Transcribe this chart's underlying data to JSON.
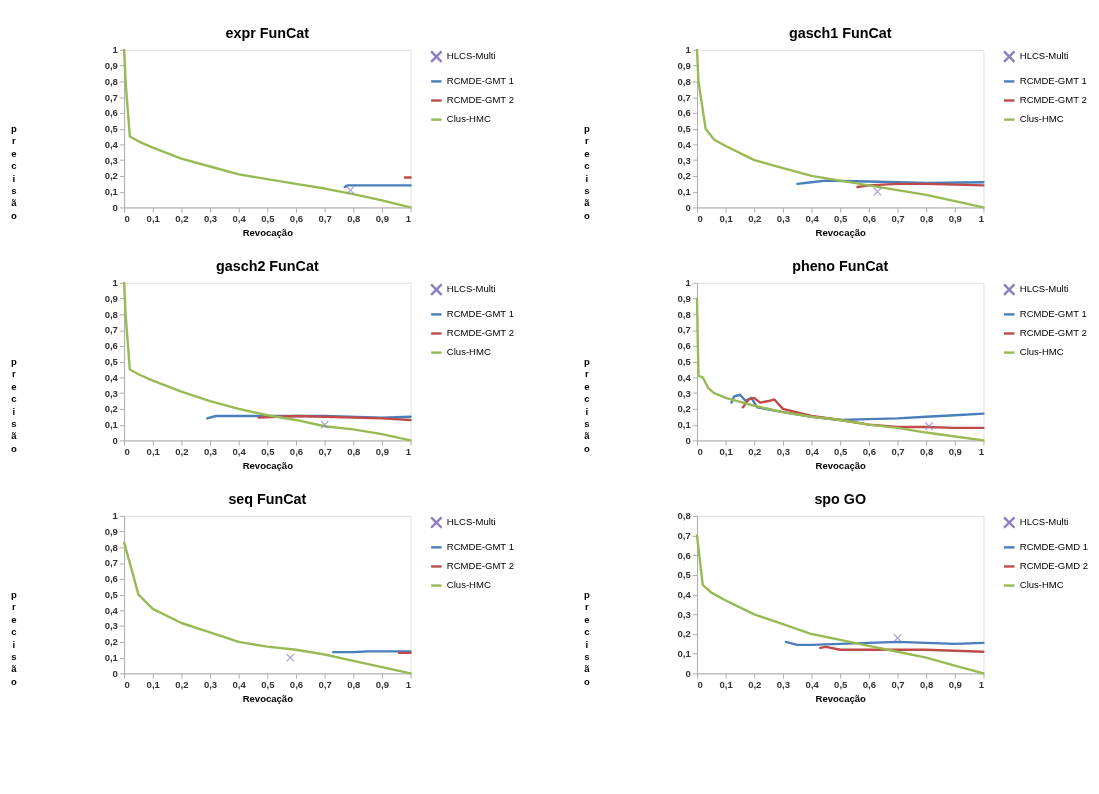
{
  "chart_data": [
    {
      "type": "line",
      "title": "expr FunCat",
      "xlabel": "Revocação",
      "ylabel": "precisão",
      "legend": "right",
      "grid": false,
      "xlim": [
        0,
        1
      ],
      "ylim": [
        0,
        1
      ],
      "xticks": [
        0,
        {
          "value": 0.1,
          "label": "0,1"
        },
        {
          "value": 0.2,
          "label": "0,2"
        },
        {
          "value": 0.3,
          "label": "0,3"
        },
        {
          "value": 0.4,
          "label": "0,4"
        },
        {
          "value": 0.5,
          "label": "0,5"
        },
        {
          "value": 0.6,
          "label": "0,6"
        },
        {
          "value": 0.7,
          "label": "0,7"
        },
        {
          "value": 0.8,
          "label": "0,8"
        },
        {
          "value": 0.9,
          "label": "0,9"
        },
        1
      ],
      "yticks": [
        0,
        {
          "value": 0.1,
          "label": "0,1"
        },
        {
          "value": 0.2,
          "label": "0,2"
        },
        {
          "value": 0.3,
          "label": "0,3"
        },
        {
          "value": 0.4,
          "label": "0,4"
        },
        {
          "value": 0.5,
          "label": "0,5"
        },
        {
          "value": 0.6,
          "label": "0,6"
        },
        {
          "value": 0.7,
          "label": "0,7"
        },
        {
          "value": 0.8,
          "label": "0,8"
        },
        {
          "value": 0.9,
          "label": "0,9"
        },
        1
      ],
      "series": [
        {
          "name": "HLCS-Multi",
          "type": "scatter",
          "marker": "cross",
          "color": "#8e7cc3",
          "x": [
            0.79
          ],
          "values": [
            0.11
          ]
        },
        {
          "name": "RCMDE-GMT 1",
          "type": "line",
          "color": "#4a7ebb",
          "x": [
            0.77,
            0.78,
            0.8,
            0.9,
            1
          ],
          "values": [
            0.13,
            0.14,
            0.14,
            0.14,
            0.14
          ]
        },
        {
          "name": "RCMDE-GMT 2",
          "type": "line",
          "color": "#be4b48",
          "x": [
            0.98,
            1
          ],
          "values": [
            0.19,
            0.19
          ]
        },
        {
          "name": "Clus-HMC",
          "type": "line",
          "color": "#98b954",
          "x": [
            0,
            0.005,
            0.02,
            0.05,
            0.1,
            0.2,
            0.3,
            0.4,
            0.5,
            0.6,
            0.7,
            0.8,
            0.9,
            1
          ],
          "values": [
            1,
            0.8,
            0.45,
            0.42,
            0.38,
            0.31,
            0.26,
            0.21,
            0.18,
            0.15,
            0.12,
            0.085,
            0.045,
            0
          ]
        }
      ]
    },
    {
      "type": "line",
      "title": "gasch1 FunCat",
      "xlabel": "Revocação",
      "ylabel": "precisão",
      "legend": "right",
      "grid": false,
      "xlim": [
        0,
        1
      ],
      "ylim": [
        0,
        1
      ],
      "xticks": [
        0,
        {
          "value": 0.1,
          "label": "0,1"
        },
        {
          "value": 0.2,
          "label": "0,2"
        },
        {
          "value": 0.3,
          "label": "0,3"
        },
        {
          "value": 0.4,
          "label": "0,4"
        },
        {
          "value": 0.5,
          "label": "0,5"
        },
        {
          "value": 0.6,
          "label": "0,6"
        },
        {
          "value": 0.7,
          "label": "0,7"
        },
        {
          "value": 0.8,
          "label": "0,8"
        },
        {
          "value": 0.9,
          "label": "0,9"
        },
        1
      ],
      "yticks": [
        0,
        {
          "value": 0.1,
          "label": "0,1"
        },
        {
          "value": 0.2,
          "label": "0,2"
        },
        {
          "value": 0.3,
          "label": "0,3"
        },
        {
          "value": 0.4,
          "label": "0,4"
        },
        {
          "value": 0.5,
          "label": "0,5"
        },
        {
          "value": 0.6,
          "label": "0,6"
        },
        {
          "value": 0.7,
          "label": "0,7"
        },
        {
          "value": 0.8,
          "label": "0,8"
        },
        {
          "value": 0.9,
          "label": "0,9"
        },
        1
      ],
      "series": [
        {
          "name": "HLCS-Multi",
          "type": "scatter",
          "marker": "cross",
          "color": "#8e7cc3",
          "x": [
            0.63
          ],
          "values": [
            0.1
          ]
        },
        {
          "name": "RCMDE-GMT 1",
          "type": "line",
          "color": "#4a7ebb",
          "x": [
            0.35,
            0.4,
            0.45,
            0.6,
            0.8,
            1
          ],
          "values": [
            0.15,
            0.16,
            0.17,
            0.165,
            0.155,
            0.16
          ]
        },
        {
          "name": "RCMDE-GMT 2",
          "type": "line",
          "color": "#be4b48",
          "x": [
            0.56,
            0.6,
            0.7,
            0.8,
            1
          ],
          "values": [
            0.13,
            0.14,
            0.15,
            0.15,
            0.14
          ]
        },
        {
          "name": "Clus-HMC",
          "type": "line",
          "color": "#98b954",
          "x": [
            0,
            0.005,
            0.03,
            0.06,
            0.1,
            0.2,
            0.3,
            0.4,
            0.5,
            0.6,
            0.7,
            0.8,
            0.9,
            1
          ],
          "values": [
            1,
            0.8,
            0.5,
            0.43,
            0.39,
            0.3,
            0.25,
            0.2,
            0.17,
            0.14,
            0.11,
            0.08,
            0.04,
            0
          ]
        }
      ]
    },
    {
      "type": "line",
      "title": "gasch2 FunCat",
      "xlabel": "Revocação",
      "ylabel": "precisão",
      "legend": "right",
      "grid": false,
      "xlim": [
        0,
        1
      ],
      "ylim": [
        0,
        1
      ],
      "xticks": [
        0,
        {
          "value": 0.1,
          "label": "0,1"
        },
        {
          "value": 0.2,
          "label": "0,2"
        },
        {
          "value": 0.3,
          "label": "0,3"
        },
        {
          "value": 0.4,
          "label": "0,4"
        },
        {
          "value": 0.5,
          "label": "0,5"
        },
        {
          "value": 0.6,
          "label": "0,6"
        },
        {
          "value": 0.7,
          "label": "0,7"
        },
        {
          "value": 0.8,
          "label": "0,8"
        },
        {
          "value": 0.9,
          "label": "0,9"
        },
        1
      ],
      "yticks": [
        0,
        {
          "value": 0.1,
          "label": "0,1"
        },
        {
          "value": 0.2,
          "label": "0,2"
        },
        {
          "value": 0.3,
          "label": "0,3"
        },
        {
          "value": 0.4,
          "label": "0,4"
        },
        {
          "value": 0.5,
          "label": "0,5"
        },
        {
          "value": 0.6,
          "label": "0,6"
        },
        {
          "value": 0.7,
          "label": "0,7"
        },
        {
          "value": 0.8,
          "label": "0,8"
        },
        {
          "value": 0.9,
          "label": "0,9"
        },
        1
      ],
      "series": [
        {
          "name": "HLCS-Multi",
          "type": "scatter",
          "marker": "cross",
          "color": "#8e7cc3",
          "x": [
            0.7
          ],
          "values": [
            0.1
          ]
        },
        {
          "name": "RCMDE-GMT 1",
          "type": "line",
          "color": "#4a7ebb",
          "x": [
            0.29,
            0.32,
            0.5,
            0.7,
            0.9,
            1
          ],
          "values": [
            0.14,
            0.155,
            0.155,
            0.155,
            0.145,
            0.15
          ]
        },
        {
          "name": "RCMDE-GMT 2",
          "type": "line",
          "color": "#be4b48",
          "x": [
            0.47,
            0.6,
            0.7,
            0.9,
            1
          ],
          "values": [
            0.145,
            0.155,
            0.15,
            0.14,
            0.13
          ]
        },
        {
          "name": "Clus-HMC",
          "type": "line",
          "color": "#98b954",
          "x": [
            0,
            0.005,
            0.02,
            0.05,
            0.1,
            0.2,
            0.3,
            0.4,
            0.5,
            0.6,
            0.7,
            0.8,
            0.9,
            1
          ],
          "values": [
            1,
            0.8,
            0.45,
            0.42,
            0.38,
            0.31,
            0.25,
            0.2,
            0.16,
            0.13,
            0.09,
            0.07,
            0.04,
            0
          ]
        }
      ]
    },
    {
      "type": "line",
      "title": "pheno FunCat",
      "xlabel": "Revocação",
      "ylabel": "precisão",
      "legend": "right",
      "grid": false,
      "xlim": [
        0,
        1
      ],
      "ylim": [
        0,
        1
      ],
      "xticks": [
        0,
        {
          "value": 0.1,
          "label": "0,1"
        },
        {
          "value": 0.2,
          "label": "0,2"
        },
        {
          "value": 0.3,
          "label": "0,3"
        },
        {
          "value": 0.4,
          "label": "0,4"
        },
        {
          "value": 0.5,
          "label": "0,5"
        },
        {
          "value": 0.6,
          "label": "0,6"
        },
        {
          "value": 0.7,
          "label": "0,7"
        },
        {
          "value": 0.8,
          "label": "0,8"
        },
        {
          "value": 0.9,
          "label": "0,9"
        },
        1
      ],
      "yticks": [
        0,
        {
          "value": 0.1,
          "label": "0,1"
        },
        {
          "value": 0.2,
          "label": "0,2"
        },
        {
          "value": 0.3,
          "label": "0,3"
        },
        {
          "value": 0.4,
          "label": "0,4"
        },
        {
          "value": 0.5,
          "label": "0,5"
        },
        {
          "value": 0.6,
          "label": "0,6"
        },
        {
          "value": 0.7,
          "label": "0,7"
        },
        {
          "value": 0.8,
          "label": "0,8"
        },
        {
          "value": 0.9,
          "label": "0,9"
        },
        1
      ],
      "series": [
        {
          "name": "HLCS-Multi",
          "type": "scatter",
          "marker": "cross",
          "color": "#8e7cc3",
          "x": [
            0.81
          ],
          "values": [
            0.09
          ]
        },
        {
          "name": "RCMDE-GMT 1",
          "type": "line",
          "color": "#4a7ebb",
          "x": [
            0.12,
            0.13,
            0.15,
            0.17,
            0.19,
            0.21,
            0.3,
            0.4,
            0.5,
            0.6,
            0.7,
            0.8,
            0.9,
            1
          ],
          "values": [
            0.24,
            0.28,
            0.29,
            0.25,
            0.27,
            0.21,
            0.18,
            0.15,
            0.13,
            0.135,
            0.14,
            0.15,
            0.16,
            0.17
          ]
        },
        {
          "name": "RCMDE-GMT 2",
          "type": "line",
          "color": "#be4b48",
          "x": [
            0.16,
            0.18,
            0.2,
            0.22,
            0.25,
            0.27,
            0.3,
            0.4,
            0.5,
            0.6,
            0.7,
            0.8,
            0.9,
            1
          ],
          "values": [
            0.21,
            0.26,
            0.27,
            0.24,
            0.25,
            0.26,
            0.2,
            0.155,
            0.13,
            0.1,
            0.085,
            0.085,
            0.08,
            0.08
          ]
        },
        {
          "name": "Clus-HMC",
          "type": "line",
          "color": "#98b954",
          "x": [
            0,
            0.005,
            0.02,
            0.04,
            0.06,
            0.1,
            0.2,
            0.3,
            0.4,
            0.5,
            0.6,
            0.7,
            0.8,
            0.9,
            1
          ],
          "values": [
            0.9,
            0.41,
            0.4,
            0.33,
            0.3,
            0.27,
            0.22,
            0.18,
            0.15,
            0.13,
            0.1,
            0.08,
            0.05,
            0.025,
            0
          ]
        }
      ]
    },
    {
      "type": "line",
      "title": "seq FunCat",
      "xlabel": "Revocação",
      "ylabel": "precisão",
      "legend": "right",
      "grid": false,
      "xlim": [
        0,
        1
      ],
      "ylim": [
        0,
        1
      ],
      "xticks": [
        0,
        {
          "value": 0.1,
          "label": "0,1"
        },
        {
          "value": 0.2,
          "label": "0,2"
        },
        {
          "value": 0.3,
          "label": "0,3"
        },
        {
          "value": 0.4,
          "label": "0,4"
        },
        {
          "value": 0.5,
          "label": "0,5"
        },
        {
          "value": 0.6,
          "label": "0,6"
        },
        {
          "value": 0.7,
          "label": "0,7"
        },
        {
          "value": 0.8,
          "label": "0,8"
        },
        {
          "value": 0.9,
          "label": "0,9"
        },
        1
      ],
      "yticks": [
        0,
        {
          "value": 0.1,
          "label": "0,1"
        },
        {
          "value": 0.2,
          "label": "0,2"
        },
        {
          "value": 0.3,
          "label": "0,3"
        },
        {
          "value": 0.4,
          "label": "0,4"
        },
        {
          "value": 0.5,
          "label": "0,5"
        },
        {
          "value": 0.6,
          "label": "0,6"
        },
        {
          "value": 0.7,
          "label": "0,7"
        },
        {
          "value": 0.8,
          "label": "0,8"
        },
        {
          "value": 0.9,
          "label": "0,9"
        },
        1
      ],
      "series": [
        {
          "name": "HLCS-Multi",
          "type": "scatter",
          "marker": "cross",
          "color": "#8e7cc3",
          "x": [
            0.58
          ],
          "values": [
            0.1
          ]
        },
        {
          "name": "RCMDE-GMT 1",
          "type": "line",
          "color": "#4a7ebb",
          "x": [
            0.73,
            0.8,
            0.85,
            0.9,
            1
          ],
          "values": [
            0.135,
            0.135,
            0.14,
            0.14,
            0.14
          ]
        },
        {
          "name": "RCMDE-GMT 2",
          "type": "line",
          "color": "#be4b48",
          "x": [
            0.96,
            1
          ],
          "values": [
            0.13,
            0.13
          ]
        },
        {
          "name": "Clus-HMC",
          "type": "line",
          "color": "#98b954",
          "x": [
            0,
            0.02,
            0.05,
            0.1,
            0.2,
            0.3,
            0.4,
            0.5,
            0.6,
            0.7,
            0.8,
            0.9,
            1
          ],
          "values": [
            0.83,
            0.7,
            0.5,
            0.41,
            0.32,
            0.26,
            0.2,
            0.17,
            0.15,
            0.12,
            0.08,
            0.04,
            0
          ]
        }
      ]
    },
    {
      "type": "line",
      "title": "spo GO",
      "xlabel": "Revocação",
      "ylabel": "precisão",
      "legend": "right",
      "grid": false,
      "xlim": [
        0,
        1
      ],
      "ylim": [
        0,
        0.8
      ],
      "xticks": [
        0,
        {
          "value": 0.1,
          "label": "0,1"
        },
        {
          "value": 0.2,
          "label": "0,2"
        },
        {
          "value": 0.3,
          "label": "0,3"
        },
        {
          "value": 0.4,
          "label": "0,4"
        },
        {
          "value": 0.5,
          "label": "0,5"
        },
        {
          "value": 0.6,
          "label": "0,6"
        },
        {
          "value": 0.7,
          "label": "0,7"
        },
        {
          "value": 0.8,
          "label": "0,8"
        },
        {
          "value": 0.9,
          "label": "0,9"
        },
        1
      ],
      "yticks": [
        0,
        {
          "value": 0.1,
          "label": "0,1"
        },
        {
          "value": 0.2,
          "label": "0,2"
        },
        {
          "value": 0.3,
          "label": "0,3"
        },
        {
          "value": 0.4,
          "label": "0,4"
        },
        {
          "value": 0.5,
          "label": "0,5"
        },
        {
          "value": 0.6,
          "label": "0,6"
        },
        {
          "value": 0.7,
          "label": "0,7"
        },
        {
          "value": 0.8,
          "label": "0,8"
        }
      ],
      "series": [
        {
          "name": "HLCS-Multi",
          "type": "scatter",
          "marker": "cross",
          "color": "#8e7cc3",
          "x": [
            0.7
          ],
          "values": [
            0.18
          ]
        },
        {
          "name": "RCMDE-GMD 1",
          "type": "line",
          "color": "#4a7ebb",
          "x": [
            0.31,
            0.35,
            0.4,
            0.5,
            0.6,
            0.7,
            0.8,
            0.9,
            1
          ],
          "values": [
            0.16,
            0.145,
            0.145,
            0.15,
            0.155,
            0.16,
            0.155,
            0.15,
            0.155
          ]
        },
        {
          "name": "RCMDE-GMD 2",
          "type": "line",
          "color": "#be4b48",
          "x": [
            0.43,
            0.45,
            0.5,
            0.6,
            0.7,
            0.8,
            0.9,
            1
          ],
          "values": [
            0.13,
            0.135,
            0.12,
            0.12,
            0.12,
            0.12,
            0.115,
            0.11
          ]
        },
        {
          "name": "Clus-HMC",
          "type": "line",
          "color": "#98b954",
          "x": [
            0,
            0.02,
            0.05,
            0.1,
            0.2,
            0.3,
            0.4,
            0.5,
            0.6,
            0.7,
            0.8,
            0.9,
            1
          ],
          "values": [
            0.7,
            0.45,
            0.41,
            0.37,
            0.3,
            0.25,
            0.2,
            0.17,
            0.14,
            0.11,
            0.08,
            0.04,
            0
          ]
        }
      ]
    }
  ]
}
